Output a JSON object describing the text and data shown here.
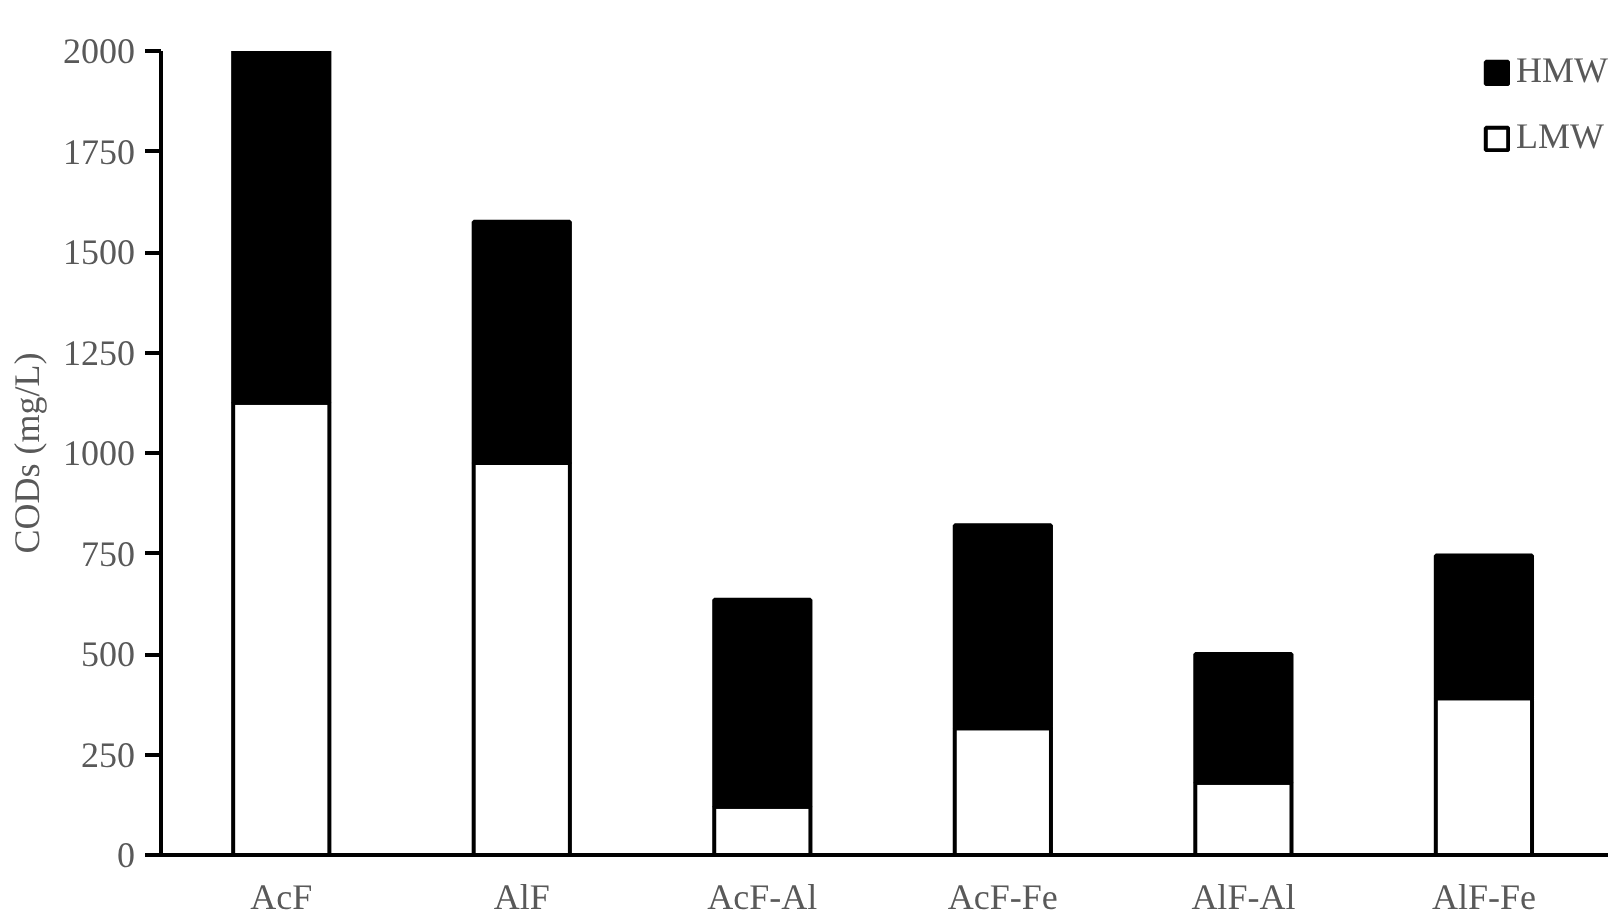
{
  "chart_data": {
    "type": "bar",
    "ylabel": "CODs (mg/L)",
    "categories": [
      "AcF",
      "AlF",
      "AcF-Al",
      "AcF-Fe",
      "AlF-Al",
      "AlF-Fe"
    ],
    "stacked": true,
    "series": [
      {
        "name": "LMW",
        "color": "#ffffff",
        "values": [
          1125,
          975,
          120,
          315,
          180,
          390
        ]
      },
      {
        "name": "HMW",
        "color": "#000000",
        "values": [
          875,
          600,
          515,
          505,
          320,
          355
        ]
      }
    ],
    "ylim": [
      0,
      2000
    ],
    "yticks": [
      0,
      250,
      500,
      750,
      1000,
      1250,
      1500,
      1750,
      2000
    ],
    "grid": false,
    "legend": "top right"
  }
}
